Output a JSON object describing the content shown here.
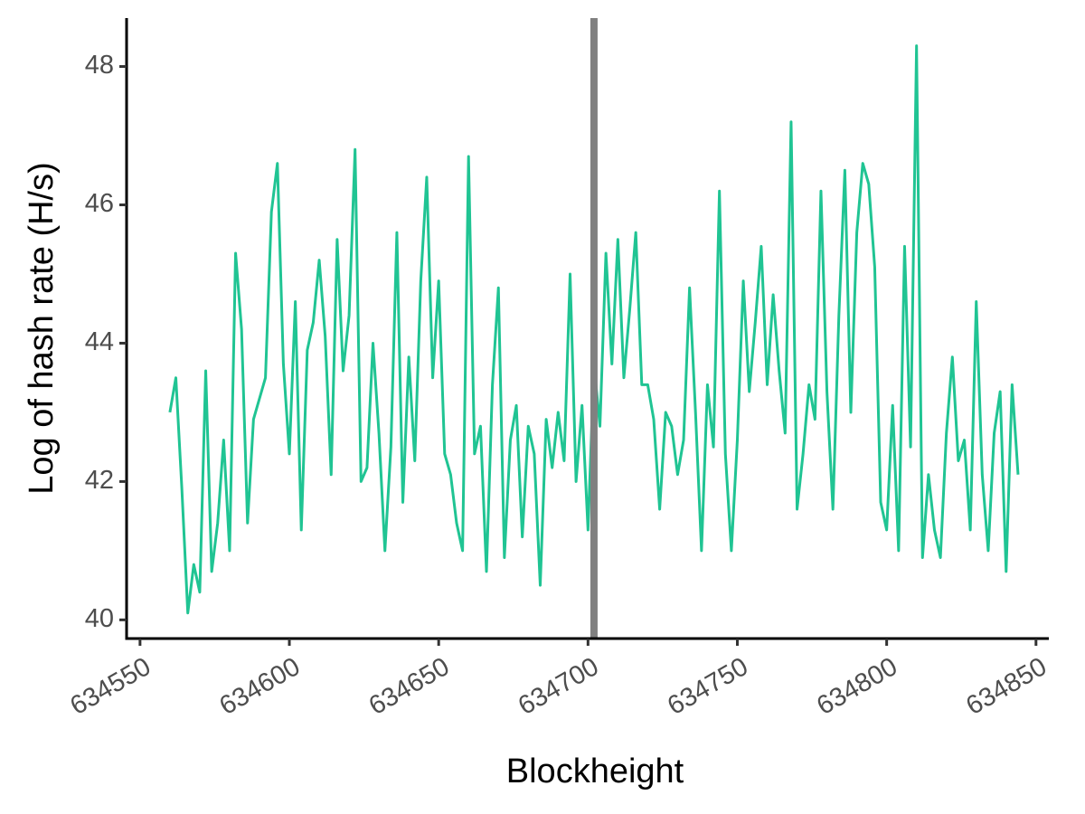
{
  "chart_data": {
    "type": "line",
    "x_label": "Blockheight",
    "y_label": "Log of hash rate (H/s)",
    "x": [
      634560,
      634562,
      634564,
      634566,
      634568,
      634570,
      634572,
      634574,
      634576,
      634578,
      634580,
      634582,
      634584,
      634586,
      634588,
      634590,
      634592,
      634594,
      634596,
      634598,
      634600,
      634602,
      634604,
      634606,
      634608,
      634610,
      634612,
      634614,
      634616,
      634618,
      634620,
      634622,
      634624,
      634626,
      634628,
      634630,
      634632,
      634634,
      634636,
      634638,
      634640,
      634642,
      634644,
      634646,
      634648,
      634650,
      634652,
      634654,
      634656,
      634658,
      634660,
      634662,
      634664,
      634666,
      634668,
      634670,
      634672,
      634674,
      634676,
      634678,
      634680,
      634682,
      634684,
      634686,
      634688,
      634690,
      634692,
      634694,
      634696,
      634698,
      634700,
      634702,
      634704,
      634706,
      634708,
      634710,
      634712,
      634714,
      634716,
      634718,
      634720,
      634722,
      634724,
      634726,
      634728,
      634730,
      634732,
      634734,
      634736,
      634738,
      634740,
      634742,
      634744,
      634746,
      634748,
      634750,
      634752,
      634754,
      634756,
      634758,
      634760,
      634762,
      634764,
      634766,
      634768,
      634770,
      634772,
      634774,
      634776,
      634778,
      634780,
      634782,
      634784,
      634786,
      634788,
      634790,
      634792,
      634794,
      634796,
      634798,
      634800,
      634802,
      634804,
      634806,
      634808,
      634810,
      634812,
      634814,
      634816,
      634818,
      634820,
      634822,
      634824,
      634826,
      634828,
      634830,
      634832,
      634834,
      634836,
      634838,
      634840,
      634842,
      634844
    ],
    "series": [
      {
        "color": "#20c493",
        "values": [
          43.0,
          43.5,
          41.9,
          40.1,
          40.8,
          40.4,
          43.6,
          40.7,
          41.4,
          42.6,
          41.0,
          45.3,
          44.2,
          41.4,
          42.9,
          43.2,
          43.5,
          45.9,
          46.6,
          43.7,
          42.4,
          44.6,
          41.3,
          43.9,
          44.3,
          45.2,
          44.1,
          42.1,
          45.5,
          43.6,
          44.4,
          46.8,
          42.0,
          42.2,
          44.0,
          42.7,
          41.0,
          42.5,
          45.6,
          41.7,
          43.8,
          42.3,
          44.9,
          46.4,
          43.5,
          44.9,
          42.4,
          42.1,
          41.4,
          41.0,
          46.7,
          42.4,
          42.8,
          40.7,
          43.4,
          44.8,
          40.9,
          42.6,
          43.1,
          41.2,
          42.8,
          42.4,
          40.5,
          42.9,
          42.2,
          43.0,
          42.3,
          45.0,
          42.0,
          43.1,
          41.3,
          43.7,
          42.8,
          45.3,
          43.7,
          45.5,
          43.5,
          44.5,
          45.6,
          43.4,
          43.4,
          42.9,
          41.6,
          43.0,
          42.8,
          42.1,
          42.6,
          44.8,
          43.0,
          41.0,
          43.4,
          42.5,
          46.2,
          42.4,
          41.0,
          42.6,
          44.9,
          43.3,
          44.3,
          45.4,
          43.4,
          44.7,
          43.6,
          42.7,
          47.2,
          41.6,
          42.4,
          43.4,
          42.9,
          46.2,
          43.3,
          41.6,
          44.4,
          46.5,
          43.0,
          45.6,
          46.6,
          46.3,
          45.1,
          41.7,
          41.3,
          43.1,
          41.0,
          45.4,
          42.5,
          48.3,
          40.9,
          42.1,
          41.3,
          40.9,
          42.7,
          43.8,
          42.3,
          42.6,
          41.3,
          44.6,
          42.1,
          41.0,
          42.7,
          43.3,
          40.7,
          43.4,
          42.1
        ]
      }
    ],
    "vline": {
      "x": 634702,
      "color": "#808080"
    },
    "xlim": [
      634545.5,
      634854.3
    ],
    "xticks": [
      634550,
      634600,
      634650,
      634700,
      634750,
      634800,
      634850
    ],
    "ylim": [
      39.73,
      48.7
    ],
    "yticks": [
      40,
      42,
      44,
      46,
      48
    ]
  }
}
